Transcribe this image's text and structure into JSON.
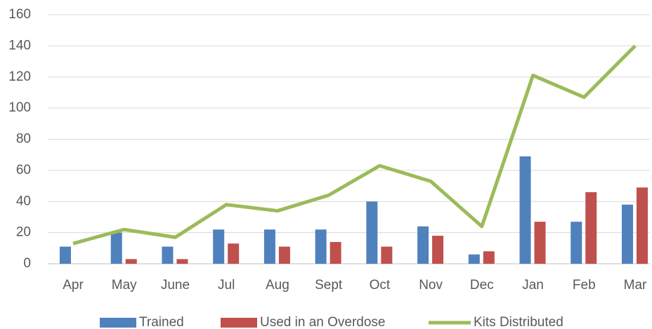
{
  "chart_data": {
    "type": "bar-line",
    "categories": [
      "Apr",
      "May",
      "June",
      "Jul",
      "Aug",
      "Sept",
      "Oct",
      "Nov",
      "Dec",
      "Jan",
      "Feb",
      "Mar"
    ],
    "series": [
      {
        "name": "Trained",
        "type": "bar",
        "color": "#4f81bd",
        "values": [
          11,
          20,
          11,
          22,
          22,
          22,
          40,
          24,
          6,
          69,
          27,
          38
        ]
      },
      {
        "name": "Used in an Overdose",
        "type": "bar",
        "color": "#c0504d",
        "values": [
          0,
          3,
          3,
          13,
          11,
          14,
          11,
          18,
          8,
          27,
          46,
          49
        ]
      },
      {
        "name": "Kits Distributed",
        "type": "line",
        "color": "#9bbb59",
        "values": [
          13,
          22,
          17,
          38,
          34,
          44,
          63,
          53,
          24,
          121,
          107,
          140
        ]
      }
    ],
    "ylim": [
      0,
      160
    ],
    "yticks": [
      0,
      20,
      40,
      60,
      80,
      100,
      120,
      140,
      160
    ],
    "grid": true,
    "legend": "bottom"
  }
}
